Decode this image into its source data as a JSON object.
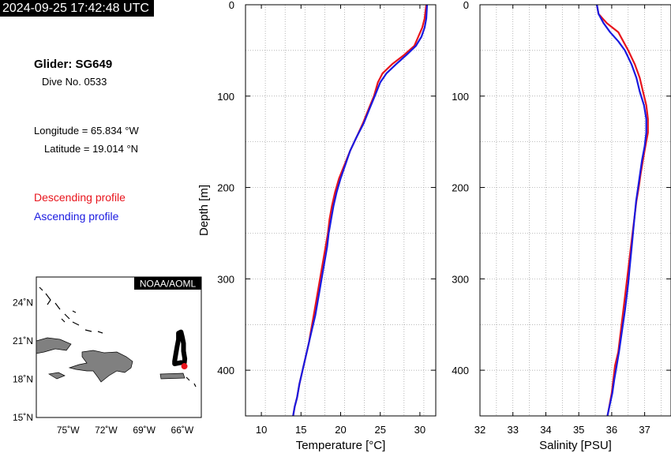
{
  "header": {
    "timestamp": "2024-09-25 17:42:48 UTC"
  },
  "info": {
    "glider": "Glider: SG649",
    "dive": "Dive No. 0533",
    "longitude": "Longitude = 65.834 °W",
    "latitude": "Latitude = 19.014 °N"
  },
  "legend": {
    "descending": "Descending profile",
    "ascending": "Ascending profile"
  },
  "colors": {
    "descending": "#e8141c",
    "ascending": "#1a1ae0",
    "land": "#808080"
  },
  "map": {
    "badge": "NOAA/AOML",
    "lon_labels": [
      "75˚W",
      "72˚W",
      "69˚W",
      "66˚W"
    ],
    "lat_labels": [
      "24˚N",
      "21˚N",
      "18˚N",
      "15˚N"
    ],
    "lon_ticks": [
      -75,
      -72,
      -69,
      -66
    ],
    "lat_ticks": [
      24,
      21,
      18,
      15
    ],
    "lon_range": [
      -77.5,
      -64.5
    ],
    "lat_range": [
      15,
      26
    ],
    "track": [
      [
        -66.1,
        19.3
      ],
      [
        -66.6,
        19.2
      ],
      [
        -66.6,
        19.4
      ],
      [
        -66.5,
        20.0
      ],
      [
        -66.4,
        20.6
      ],
      [
        -66.3,
        21.1
      ],
      [
        -66.3,
        21.6
      ],
      [
        -66.1,
        21.7
      ],
      [
        -66.0,
        21.3
      ],
      [
        -65.9,
        20.8
      ],
      [
        -65.9,
        20.2
      ],
      [
        -65.8,
        19.6
      ],
      [
        -65.83,
        19.3
      ]
    ],
    "glider_position": [
      -65.834,
      19.014
    ]
  },
  "chart_data": [
    {
      "type": "line",
      "xlabel": "Temperature [°C]",
      "ylabel": "Depth [m]",
      "xlim": [
        8,
        32
      ],
      "ylim": [
        0,
        450
      ],
      "y_inverted": true,
      "grid": true,
      "x_ticks": [
        10,
        15,
        20,
        25,
        30
      ],
      "y_ticks": [
        0,
        100,
        200,
        300,
        400
      ],
      "series": [
        {
          "name": "Descending profile",
          "color": "#e8141c",
          "x": [
            30.8,
            30.6,
            30.3,
            29.8,
            29.3,
            28.0,
            26.5,
            25.3,
            24.7,
            24.2,
            23.5,
            22.8,
            22.0,
            21.2,
            20.5,
            19.8,
            19.3,
            18.9,
            18.6,
            18.4,
            18.1,
            17.8,
            17.5,
            17.2,
            16.9,
            16.6,
            16.3,
            16.0,
            15.6,
            15.2,
            14.8,
            14.5,
            14.2,
            14.0
          ],
          "y": [
            0,
            15,
            25,
            35,
            45,
            55,
            65,
            75,
            85,
            100,
            115,
            130,
            145,
            160,
            175,
            190,
            205,
            220,
            235,
            250,
            265,
            280,
            295,
            310,
            325,
            340,
            355,
            370,
            385,
            400,
            415,
            430,
            440,
            450
          ]
        },
        {
          "name": "Ascending profile",
          "color": "#1a1ae0",
          "x": [
            30.9,
            30.8,
            30.6,
            30.2,
            29.5,
            28.3,
            27.0,
            25.8,
            25.0,
            24.3,
            23.6,
            22.9,
            22.0,
            21.2,
            20.6,
            20.0,
            19.5,
            19.1,
            18.8,
            18.5,
            18.3,
            18.0,
            17.7,
            17.4,
            17.1,
            16.8,
            16.4,
            16.0,
            15.6,
            15.2,
            14.8,
            14.5,
            14.2,
            14.0
          ],
          "y": [
            0,
            15,
            25,
            35,
            45,
            55,
            65,
            75,
            85,
            100,
            115,
            130,
            145,
            160,
            175,
            190,
            205,
            220,
            235,
            250,
            265,
            280,
            295,
            310,
            325,
            340,
            355,
            370,
            385,
            400,
            415,
            430,
            440,
            450
          ]
        }
      ]
    },
    {
      "type": "line",
      "xlabel": "Salinity [PSU]",
      "ylabel": "",
      "xlim": [
        32,
        37.8
      ],
      "ylim": [
        0,
        450
      ],
      "y_inverted": true,
      "grid": true,
      "x_ticks": [
        32,
        33,
        34,
        35,
        36,
        37
      ],
      "y_ticks": [
        0,
        100,
        200,
        300,
        400
      ],
      "series": [
        {
          "name": "Descending profile",
          "color": "#e8141c",
          "x": [
            35.55,
            35.6,
            35.85,
            36.2,
            36.35,
            36.5,
            36.7,
            36.85,
            36.95,
            37.05,
            37.1,
            37.1,
            37.02,
            36.95,
            36.88,
            36.82,
            36.75,
            36.7,
            36.65,
            36.6,
            36.55,
            36.5,
            36.45,
            36.4,
            36.35,
            36.3,
            36.25,
            36.2,
            36.1,
            36.05,
            36.0,
            35.95,
            35.9,
            35.87
          ],
          "y": [
            0,
            10,
            20,
            30,
            40,
            50,
            65,
            80,
            95,
            110,
            125,
            140,
            155,
            170,
            185,
            200,
            215,
            230,
            245,
            260,
            275,
            290,
            305,
            320,
            335,
            350,
            365,
            380,
            395,
            410,
            425,
            435,
            445,
            450
          ]
        },
        {
          "name": "Ascending profile",
          "color": "#1a1ae0",
          "x": [
            35.55,
            35.6,
            35.75,
            35.95,
            36.2,
            36.4,
            36.6,
            36.75,
            36.85,
            36.98,
            37.05,
            37.05,
            37.0,
            36.92,
            36.86,
            36.8,
            36.74,
            36.7,
            36.66,
            36.62,
            36.58,
            36.54,
            36.5,
            36.45,
            36.4,
            36.34,
            36.28,
            36.22,
            36.15,
            36.08,
            36.02,
            35.96,
            35.9,
            35.87
          ],
          "y": [
            0,
            10,
            20,
            30,
            40,
            50,
            65,
            80,
            95,
            110,
            125,
            140,
            155,
            170,
            185,
            200,
            215,
            230,
            245,
            260,
            275,
            290,
            305,
            320,
            335,
            350,
            365,
            380,
            395,
            410,
            425,
            435,
            445,
            450
          ]
        }
      ]
    }
  ]
}
